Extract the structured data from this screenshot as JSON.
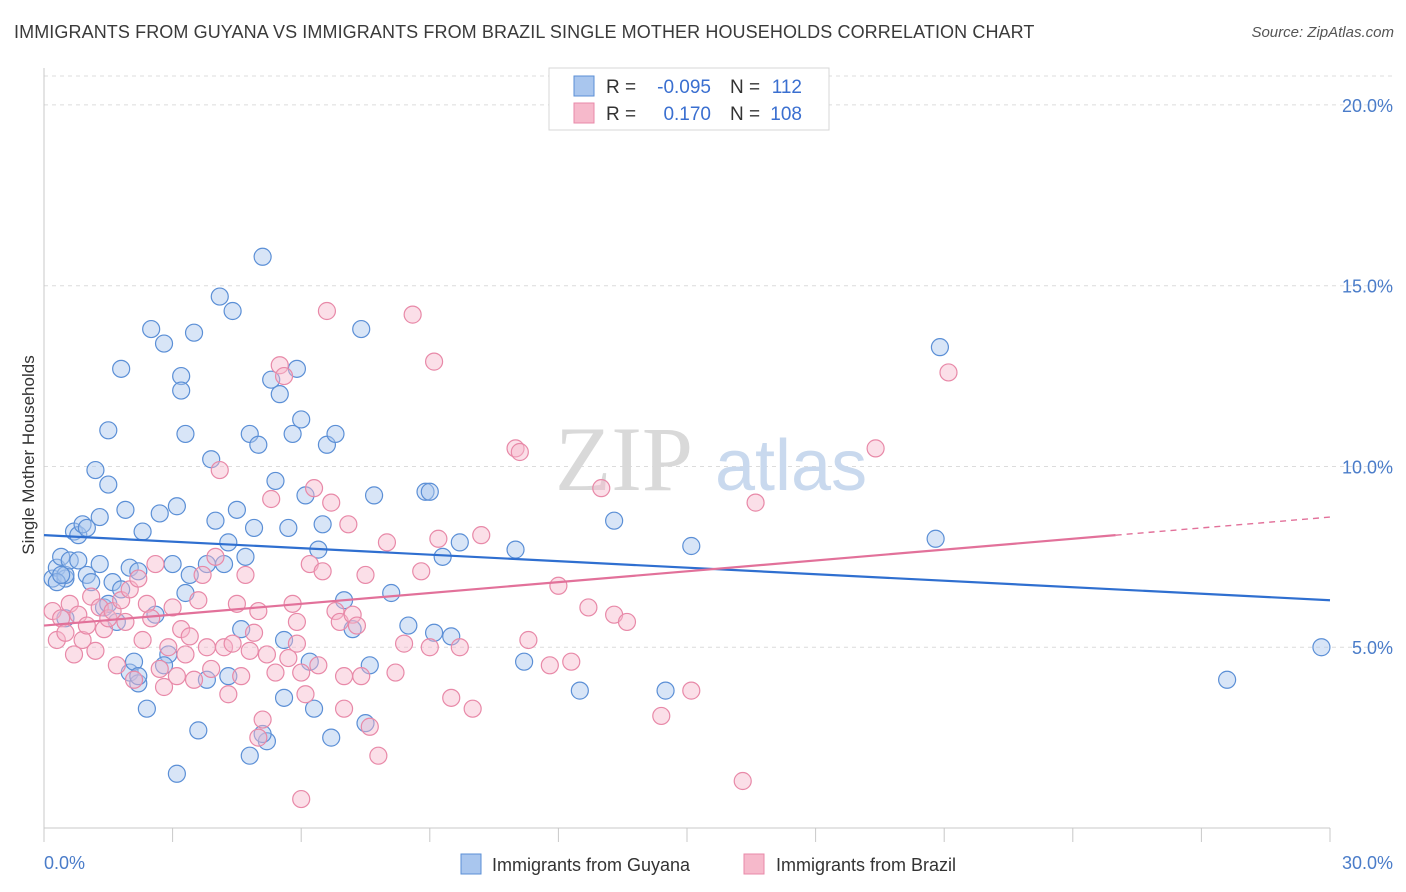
{
  "title": "IMMIGRANTS FROM GUYANA VS IMMIGRANTS FROM BRAZIL SINGLE MOTHER HOUSEHOLDS CORRELATION CHART",
  "source": "Source: ZipAtlas.com",
  "watermark": {
    "zip": "ZIP",
    "atlas": "atlas"
  },
  "colors": {
    "guyana_fill": "#a9c6ee",
    "guyana_stroke": "#5b8fd6",
    "guyana_line": "#2f6fd0",
    "brazil_fill": "#f6b9cb",
    "brazil_stroke": "#e889a8",
    "brazil_line": "#e2719a",
    "grid": "#dcdcdc",
    "tick_text": "#4a7cc9"
  },
  "legend": {
    "rows": [
      {
        "r_label": "R =",
        "r_value": "-0.095",
        "n_label": "N =",
        "n_value": "112"
      },
      {
        "r_label": "R =",
        "r_value": "0.170",
        "n_label": "N =",
        "n_value": "108"
      }
    ]
  },
  "chart_data": {
    "type": "scatter",
    "title": "IMMIGRANTS FROM GUYANA VS IMMIGRANTS FROM BRAZIL SINGLE MOTHER HOUSEHOLDS CORRELATION CHART",
    "xlabel": "",
    "ylabel": "Single Mother Households",
    "xlim": [
      0,
      30
    ],
    "ylim": [
      0,
      20.8
    ],
    "x_tick_labels": [
      "0.0%",
      "30.0%"
    ],
    "y_ticks": [
      5,
      10,
      15,
      20
    ],
    "y_tick_labels": [
      "5.0%",
      "10.0%",
      "15.0%",
      "20.0%"
    ],
    "grid": true,
    "legend_position": "top-center",
    "series": [
      {
        "name": "Immigrants from Guyana",
        "r": -0.095,
        "n": 112,
        "trend": {
          "x": [
            0,
            30
          ],
          "y": [
            8.1,
            6.3
          ]
        },
        "points": [
          [
            0.2,
            6.9
          ],
          [
            0.3,
            7.2
          ],
          [
            0.4,
            7.5
          ],
          [
            0.5,
            6.9
          ],
          [
            0.5,
            7.0
          ],
          [
            0.6,
            7.4
          ],
          [
            0.7,
            8.2
          ],
          [
            0.8,
            8.1
          ],
          [
            0.9,
            8.4
          ],
          [
            1.0,
            7.0
          ],
          [
            1.1,
            6.8
          ],
          [
            1.2,
            9.9
          ],
          [
            1.3,
            8.6
          ],
          [
            1.4,
            6.1
          ],
          [
            1.5,
            11.0
          ],
          [
            1.5,
            9.5
          ],
          [
            1.6,
            6.8
          ],
          [
            1.7,
            5.7
          ],
          [
            1.8,
            12.7
          ],
          [
            1.8,
            6.6
          ],
          [
            1.9,
            8.8
          ],
          [
            2.0,
            7.2
          ],
          [
            2.0,
            4.3
          ],
          [
            2.1,
            4.6
          ],
          [
            2.2,
            4.0
          ],
          [
            2.3,
            8.2
          ],
          [
            2.4,
            3.3
          ],
          [
            2.5,
            13.8
          ],
          [
            2.6,
            5.9
          ],
          [
            2.7,
            8.7
          ],
          [
            2.8,
            13.4
          ],
          [
            2.9,
            4.8
          ],
          [
            3.0,
            7.3
          ],
          [
            3.1,
            8.9
          ],
          [
            3.2,
            12.5
          ],
          [
            3.2,
            12.1
          ],
          [
            3.3,
            10.9
          ],
          [
            3.4,
            7.0
          ],
          [
            3.5,
            13.7
          ],
          [
            3.6,
            2.7
          ],
          [
            3.8,
            7.3
          ],
          [
            3.9,
            10.2
          ],
          [
            4.0,
            8.5
          ],
          [
            4.1,
            14.7
          ],
          [
            4.2,
            7.3
          ],
          [
            4.3,
            7.9
          ],
          [
            4.4,
            14.3
          ],
          [
            4.5,
            8.8
          ],
          [
            4.6,
            5.5
          ],
          [
            4.7,
            7.5
          ],
          [
            4.8,
            10.9
          ],
          [
            4.9,
            8.3
          ],
          [
            5.0,
            10.6
          ],
          [
            5.1,
            15.8
          ],
          [
            5.2,
            2.4
          ],
          [
            5.3,
            12.4
          ],
          [
            5.4,
            9.6
          ],
          [
            5.5,
            12.0
          ],
          [
            5.6,
            5.2
          ],
          [
            5.7,
            8.3
          ],
          [
            5.8,
            10.9
          ],
          [
            5.9,
            12.7
          ],
          [
            6.0,
            11.3
          ],
          [
            6.1,
            9.2
          ],
          [
            6.3,
            3.3
          ],
          [
            6.4,
            7.7
          ],
          [
            6.5,
            8.4
          ],
          [
            6.6,
            10.6
          ],
          [
            6.7,
            2.5
          ],
          [
            6.8,
            10.9
          ],
          [
            7.0,
            6.3
          ],
          [
            7.2,
            5.5
          ],
          [
            7.4,
            13.8
          ],
          [
            7.5,
            2.9
          ],
          [
            7.6,
            4.5
          ],
          [
            7.7,
            9.2
          ],
          [
            8.1,
            6.5
          ],
          [
            8.5,
            5.6
          ],
          [
            8.9,
            9.3
          ],
          [
            9.0,
            9.3
          ],
          [
            9.1,
            5.4
          ],
          [
            9.3,
            7.5
          ],
          [
            9.5,
            5.3
          ],
          [
            9.7,
            7.9
          ],
          [
            11.0,
            7.7
          ],
          [
            11.2,
            4.6
          ],
          [
            12.5,
            3.8
          ],
          [
            13.3,
            8.5
          ],
          [
            14.5,
            3.8
          ],
          [
            15.1,
            7.8
          ],
          [
            20.8,
            8.0
          ],
          [
            20.9,
            13.3
          ],
          [
            27.6,
            4.1
          ],
          [
            29.8,
            5.0
          ],
          [
            0.3,
            6.8
          ],
          [
            0.5,
            5.8
          ],
          [
            1.0,
            8.3
          ],
          [
            1.5,
            6.2
          ],
          [
            2.2,
            4.2
          ],
          [
            2.8,
            4.5
          ],
          [
            3.3,
            6.5
          ],
          [
            3.8,
            4.1
          ],
          [
            4.3,
            4.2
          ],
          [
            4.8,
            2.0
          ],
          [
            5.1,
            2.6
          ],
          [
            5.6,
            3.6
          ],
          [
            6.2,
            4.6
          ],
          [
            2.2,
            7.1
          ],
          [
            0.8,
            7.4
          ],
          [
            0.4,
            7.0
          ],
          [
            3.1,
            1.5
          ],
          [
            1.3,
            7.3
          ]
        ]
      },
      {
        "name": "Immigrants from Brazil",
        "r": 0.17,
        "n": 108,
        "trend": {
          "x": [
            0,
            25.0
          ],
          "y": [
            5.6,
            8.1
          ]
        },
        "trend_dashed": {
          "x": [
            25.0,
            30
          ],
          "y": [
            8.1,
            8.6
          ]
        },
        "points": [
          [
            0.2,
            6.0
          ],
          [
            0.3,
            5.2
          ],
          [
            0.4,
            5.8
          ],
          [
            0.5,
            5.4
          ],
          [
            0.6,
            6.2
          ],
          [
            0.7,
            4.8
          ],
          [
            0.8,
            5.9
          ],
          [
            0.9,
            5.2
          ],
          [
            1.0,
            5.6
          ],
          [
            1.1,
            6.4
          ],
          [
            1.2,
            4.9
          ],
          [
            1.3,
            6.1
          ],
          [
            1.4,
            5.5
          ],
          [
            1.5,
            5.8
          ],
          [
            1.6,
            6.0
          ],
          [
            1.7,
            4.5
          ],
          [
            1.8,
            6.3
          ],
          [
            1.9,
            5.7
          ],
          [
            2.0,
            6.6
          ],
          [
            2.1,
            4.1
          ],
          [
            2.2,
            6.9
          ],
          [
            2.3,
            5.2
          ],
          [
            2.4,
            6.2
          ],
          [
            2.5,
            5.8
          ],
          [
            2.6,
            7.3
          ],
          [
            2.7,
            4.4
          ],
          [
            2.8,
            3.9
          ],
          [
            2.9,
            5.0
          ],
          [
            3.0,
            6.1
          ],
          [
            3.1,
            4.2
          ],
          [
            3.2,
            5.5
          ],
          [
            3.3,
            4.8
          ],
          [
            3.4,
            5.3
          ],
          [
            3.5,
            4.1
          ],
          [
            3.6,
            6.3
          ],
          [
            3.7,
            7.0
          ],
          [
            3.8,
            5.0
          ],
          [
            3.9,
            4.4
          ],
          [
            4.0,
            7.5
          ],
          [
            4.1,
            9.9
          ],
          [
            4.2,
            5.0
          ],
          [
            4.3,
            3.7
          ],
          [
            4.4,
            5.1
          ],
          [
            4.5,
            6.2
          ],
          [
            4.6,
            4.2
          ],
          [
            4.7,
            7.0
          ],
          [
            4.8,
            4.9
          ],
          [
            4.9,
            5.4
          ],
          [
            5.0,
            6.0
          ],
          [
            5.1,
            3.0
          ],
          [
            5.2,
            4.8
          ],
          [
            5.3,
            9.1
          ],
          [
            5.4,
            4.3
          ],
          [
            5.5,
            12.8
          ],
          [
            5.6,
            12.5
          ],
          [
            5.7,
            4.7
          ],
          [
            5.8,
            6.2
          ],
          [
            5.9,
            5.7
          ],
          [
            6.0,
            4.3
          ],
          [
            6.1,
            3.7
          ],
          [
            6.2,
            7.3
          ],
          [
            6.3,
            9.4
          ],
          [
            6.4,
            4.5
          ],
          [
            6.5,
            7.1
          ],
          [
            6.6,
            14.3
          ],
          [
            6.7,
            9.0
          ],
          [
            6.8,
            6.0
          ],
          [
            6.9,
            5.7
          ],
          [
            7.0,
            4.2
          ],
          [
            7.1,
            8.4
          ],
          [
            7.2,
            5.9
          ],
          [
            7.3,
            5.6
          ],
          [
            7.4,
            4.2
          ],
          [
            7.5,
            7.0
          ],
          [
            7.6,
            2.8
          ],
          [
            7.8,
            2.0
          ],
          [
            8.0,
            7.9
          ],
          [
            8.2,
            4.3
          ],
          [
            8.4,
            5.1
          ],
          [
            8.6,
            14.2
          ],
          [
            8.8,
            7.1
          ],
          [
            9.0,
            5.0
          ],
          [
            9.1,
            12.9
          ],
          [
            9.2,
            8.0
          ],
          [
            9.5,
            3.6
          ],
          [
            9.7,
            5.0
          ],
          [
            10.0,
            3.3
          ],
          [
            10.2,
            8.1
          ],
          [
            11.0,
            10.5
          ],
          [
            11.1,
            10.4
          ],
          [
            11.3,
            5.2
          ],
          [
            11.8,
            4.5
          ],
          [
            12.0,
            6.7
          ],
          [
            12.3,
            4.6
          ],
          [
            12.7,
            6.1
          ],
          [
            13.0,
            9.4
          ],
          [
            13.3,
            5.9
          ],
          [
            13.6,
            5.7
          ],
          [
            14.4,
            3.1
          ],
          [
            15.1,
            3.8
          ],
          [
            16.3,
            1.3
          ],
          [
            16.6,
            9.0
          ],
          [
            19.4,
            10.5
          ],
          [
            21.1,
            12.6
          ],
          [
            6.0,
            0.8
          ],
          [
            7.0,
            3.3
          ],
          [
            5.0,
            2.5
          ],
          [
            5.9,
            5.1
          ]
        ]
      }
    ]
  }
}
